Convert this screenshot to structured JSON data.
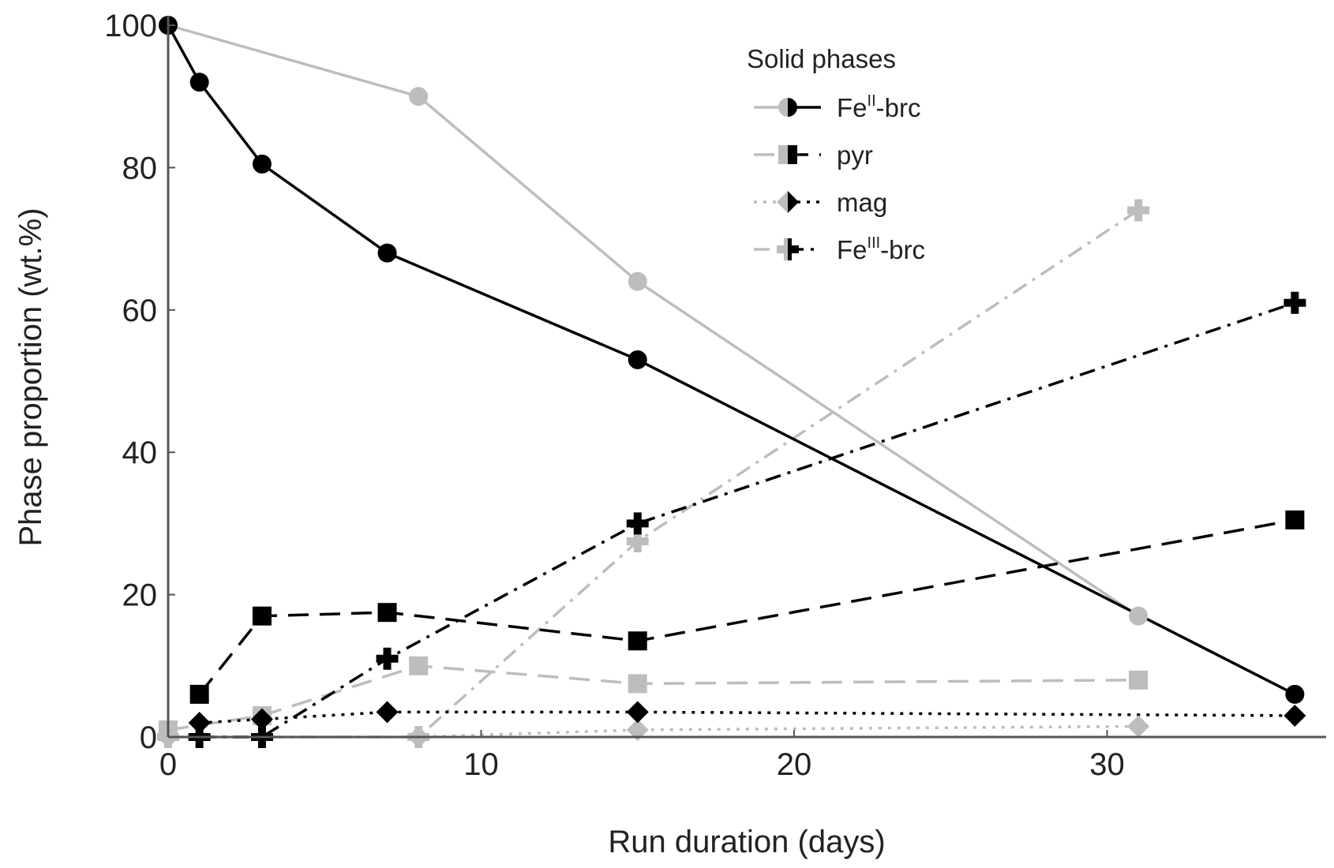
{
  "chart_data": {
    "type": "line",
    "xlabel": "Run duration (days)",
    "ylabel": "Phase proportion (wt.%)",
    "xlim": [
      0,
      37
    ],
    "ylim": [
      0,
      100
    ],
    "xticks": [
      "0",
      "10",
      "20",
      "30"
    ],
    "yticks": [
      "0",
      "20",
      "40",
      "60",
      "80",
      "100"
    ],
    "grid": false,
    "legend": {
      "title": "Solid phases",
      "placement": "top-right",
      "entries": [
        {
          "base": "Fe",
          "sup": "II",
          "suffix": "-brc"
        },
        {
          "base": "pyr",
          "sup": "",
          "suffix": ""
        },
        {
          "base": "mag",
          "sup": "",
          "suffix": ""
        },
        {
          "base": "Fe",
          "sup": "III",
          "suffix": "-brc"
        }
      ]
    },
    "series": [
      {
        "phase": "FeII-brc",
        "set": "grey",
        "color": "#bdbdbd",
        "marker": "circle",
        "dash": "solid",
        "x": [
          0,
          8,
          15,
          31
        ],
        "y": [
          100,
          90,
          64,
          17
        ]
      },
      {
        "phase": "FeII-brc",
        "set": "black",
        "color": "#000000",
        "marker": "circle",
        "dash": "solid",
        "x": [
          0,
          1,
          3,
          7,
          15,
          36
        ],
        "y": [
          100,
          92,
          80.5,
          68,
          53,
          6
        ]
      },
      {
        "phase": "pyr",
        "set": "grey",
        "color": "#bdbdbd",
        "marker": "square",
        "dash": "dashed",
        "x": [
          0,
          3,
          8,
          15,
          31
        ],
        "y": [
          1,
          3,
          10,
          7.5,
          8
        ]
      },
      {
        "phase": "pyr",
        "set": "black",
        "color": "#000000",
        "marker": "square",
        "dash": "dashed",
        "x": [
          1,
          3,
          7,
          15,
          36
        ],
        "y": [
          6,
          17,
          17.5,
          13.5,
          30.5
        ]
      },
      {
        "phase": "mag",
        "set": "grey",
        "color": "#bdbdbd",
        "marker": "diamond",
        "dash": "dotted",
        "x": [
          0,
          8,
          15,
          31
        ],
        "y": [
          0,
          0,
          1,
          1.5
        ]
      },
      {
        "phase": "mag",
        "set": "black",
        "color": "#000000",
        "marker": "diamond",
        "dash": "dotted",
        "x": [
          1,
          3,
          7,
          15,
          36
        ],
        "y": [
          2,
          2.5,
          3.5,
          3.5,
          3
        ]
      },
      {
        "phase": "FeIII-brc",
        "set": "grey",
        "color": "#bdbdbd",
        "marker": "cross",
        "dash": "dashdot",
        "x": [
          0,
          8,
          15,
          31
        ],
        "y": [
          0,
          0,
          27.5,
          74
        ]
      },
      {
        "phase": "FeIII-brc",
        "set": "black",
        "color": "#000000",
        "marker": "cross",
        "dash": "dashdot",
        "x": [
          1,
          3,
          7,
          15,
          36
        ],
        "y": [
          0,
          0,
          11,
          30,
          61
        ]
      }
    ]
  }
}
